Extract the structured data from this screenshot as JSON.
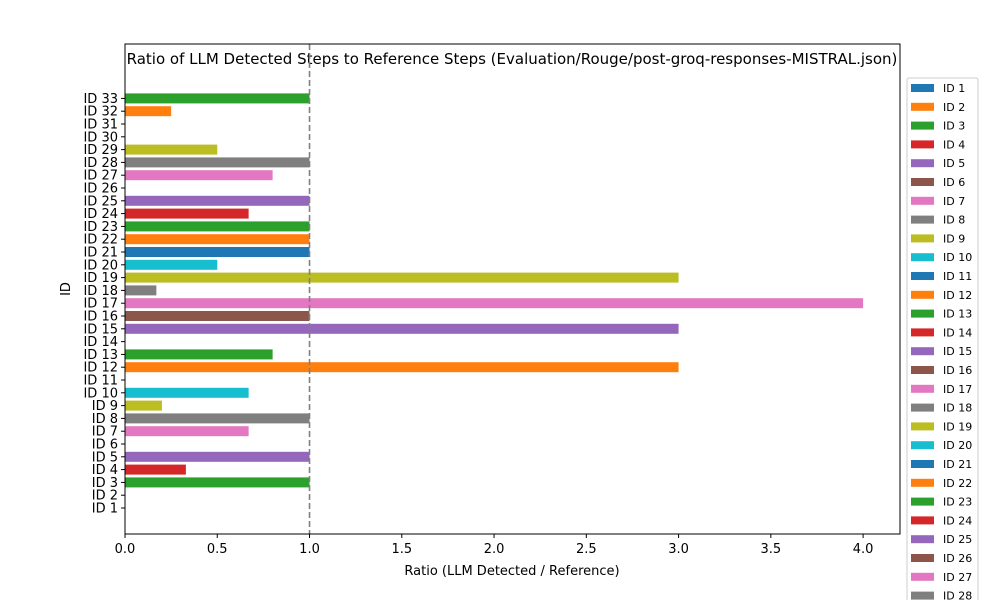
{
  "chart_data": {
    "type": "bar",
    "orientation": "horizontal",
    "title": "Ratio of LLM Detected Steps to Reference Steps (Evaluation/Rouge/post-groq-responses-MISTRAL.json)",
    "xlabel": "Ratio (LLM Detected / Reference)",
    "ylabel": "ID",
    "xlim": [
      0,
      4.2
    ],
    "xticks": [
      0.0,
      0.5,
      1.0,
      1.5,
      2.0,
      2.5,
      3.0,
      3.5,
      4.0
    ],
    "xtick_labels": [
      "0.0",
      "0.5",
      "1.0",
      "1.5",
      "2.0",
      "2.5",
      "3.0",
      "3.5",
      "4.0"
    ],
    "reference_line": {
      "x": 1.0,
      "style": "dashed",
      "color": "#808080"
    },
    "legend_position": "right, outside axes",
    "grid": false,
    "categories": [
      "ID 1",
      "ID 2",
      "ID 3",
      "ID 4",
      "ID 5",
      "ID 6",
      "ID 7",
      "ID 8",
      "ID 9",
      "ID 10",
      "ID 11",
      "ID 12",
      "ID 13",
      "ID 14",
      "ID 15",
      "ID 16",
      "ID 17",
      "ID 18",
      "ID 19",
      "ID 20",
      "ID 21",
      "ID 22",
      "ID 23",
      "ID 24",
      "ID 25",
      "ID 26",
      "ID 27",
      "ID 28",
      "ID 29",
      "ID 30",
      "ID 31",
      "ID 32",
      "ID 33"
    ],
    "values": [
      0,
      0,
      1.0,
      0.33,
      1.0,
      0,
      0.67,
      1.0,
      0.2,
      0.67,
      0,
      3.0,
      0.8,
      0,
      3.0,
      1.0,
      4.0,
      0.17,
      3.0,
      0.5,
      1.0,
      1.0,
      1.0,
      0.67,
      1.0,
      0,
      0.8,
      1.0,
      0.5,
      0,
      0,
      0.25,
      1.0
    ],
    "colors": [
      "#1f77b4",
      "#ff7f0e",
      "#2ca02c",
      "#d62728",
      "#9467bd",
      "#8c564b",
      "#e377c2",
      "#7f7f7f",
      "#bcbd22",
      "#17becf"
    ],
    "legend_entries": [
      "ID 1",
      "ID 2",
      "ID 3",
      "ID 4",
      "ID 5",
      "ID 6",
      "ID 7",
      "ID 8",
      "ID 9",
      "ID 10",
      "ID 11",
      "ID 12",
      "ID 13",
      "ID 14",
      "ID 15",
      "ID 16",
      "ID 17",
      "ID 18",
      "ID 19",
      "ID 20",
      "ID 21",
      "ID 22",
      "ID 23",
      "ID 24",
      "ID 25",
      "ID 26",
      "ID 27",
      "ID 28"
    ]
  }
}
